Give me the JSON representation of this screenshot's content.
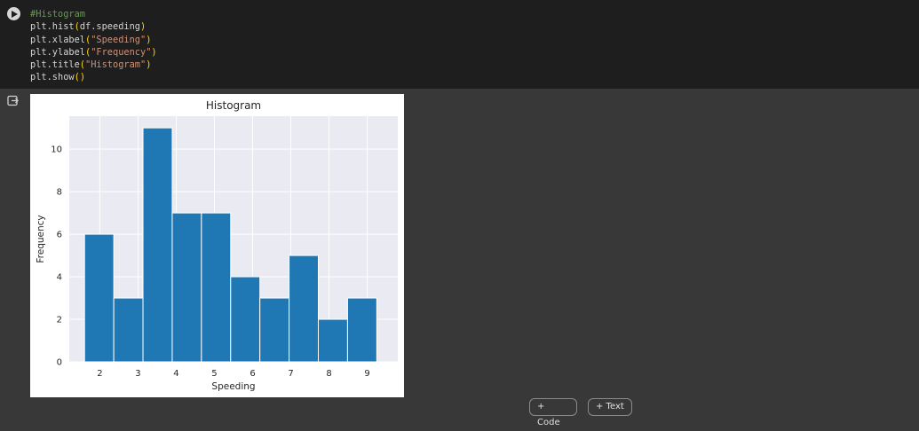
{
  "code_cell": {
    "comment": "#Histogram",
    "lines": [
      {
        "prefix": "plt.hist",
        "open": "(",
        "arg": "df.speeding",
        "arg_is_string": false,
        "close": ")"
      },
      {
        "prefix": "plt.xlabel",
        "open": "(",
        "arg": "\"Speeding\"",
        "arg_is_string": true,
        "close": ")"
      },
      {
        "prefix": "plt.ylabel",
        "open": "(",
        "arg": "\"Frequency\"",
        "arg_is_string": true,
        "close": ")"
      },
      {
        "prefix": "plt.title",
        "open": "(",
        "arg": "\"Histogram\"",
        "arg_is_string": true,
        "close": ")"
      },
      {
        "prefix": "plt.show",
        "open": "(",
        "arg": "",
        "arg_is_string": false,
        "close": ")"
      }
    ]
  },
  "icons": {
    "run": "play-circle-icon",
    "output": "output-redirect-icon"
  },
  "toolbar": {
    "add_code_label": "+ Code",
    "add_text_label": "+ Text"
  },
  "colors": {
    "bar": "#1f77b4",
    "plot_bg": "#eaeaf2",
    "code_bg": "#1e1e1e",
    "page_bg": "#383838"
  },
  "chart_data": {
    "type": "bar",
    "title": "Histogram",
    "xlabel": "Speeding",
    "ylabel": "Frequency",
    "bin_edges": [
      1.6,
      2.365,
      3.13,
      3.895,
      4.66,
      5.425,
      6.19,
      6.955,
      7.72,
      8.485,
      9.25
    ],
    "values": [
      6,
      3,
      11,
      7,
      7,
      4,
      3,
      5,
      2,
      3
    ],
    "xlim": [
      1.2,
      9.8
    ],
    "ylim": [
      0,
      11.55
    ],
    "xticks": [
      2,
      3,
      4,
      5,
      6,
      7,
      8,
      9
    ],
    "yticks": [
      0,
      2,
      4,
      6,
      8,
      10
    ],
    "grid": true
  }
}
